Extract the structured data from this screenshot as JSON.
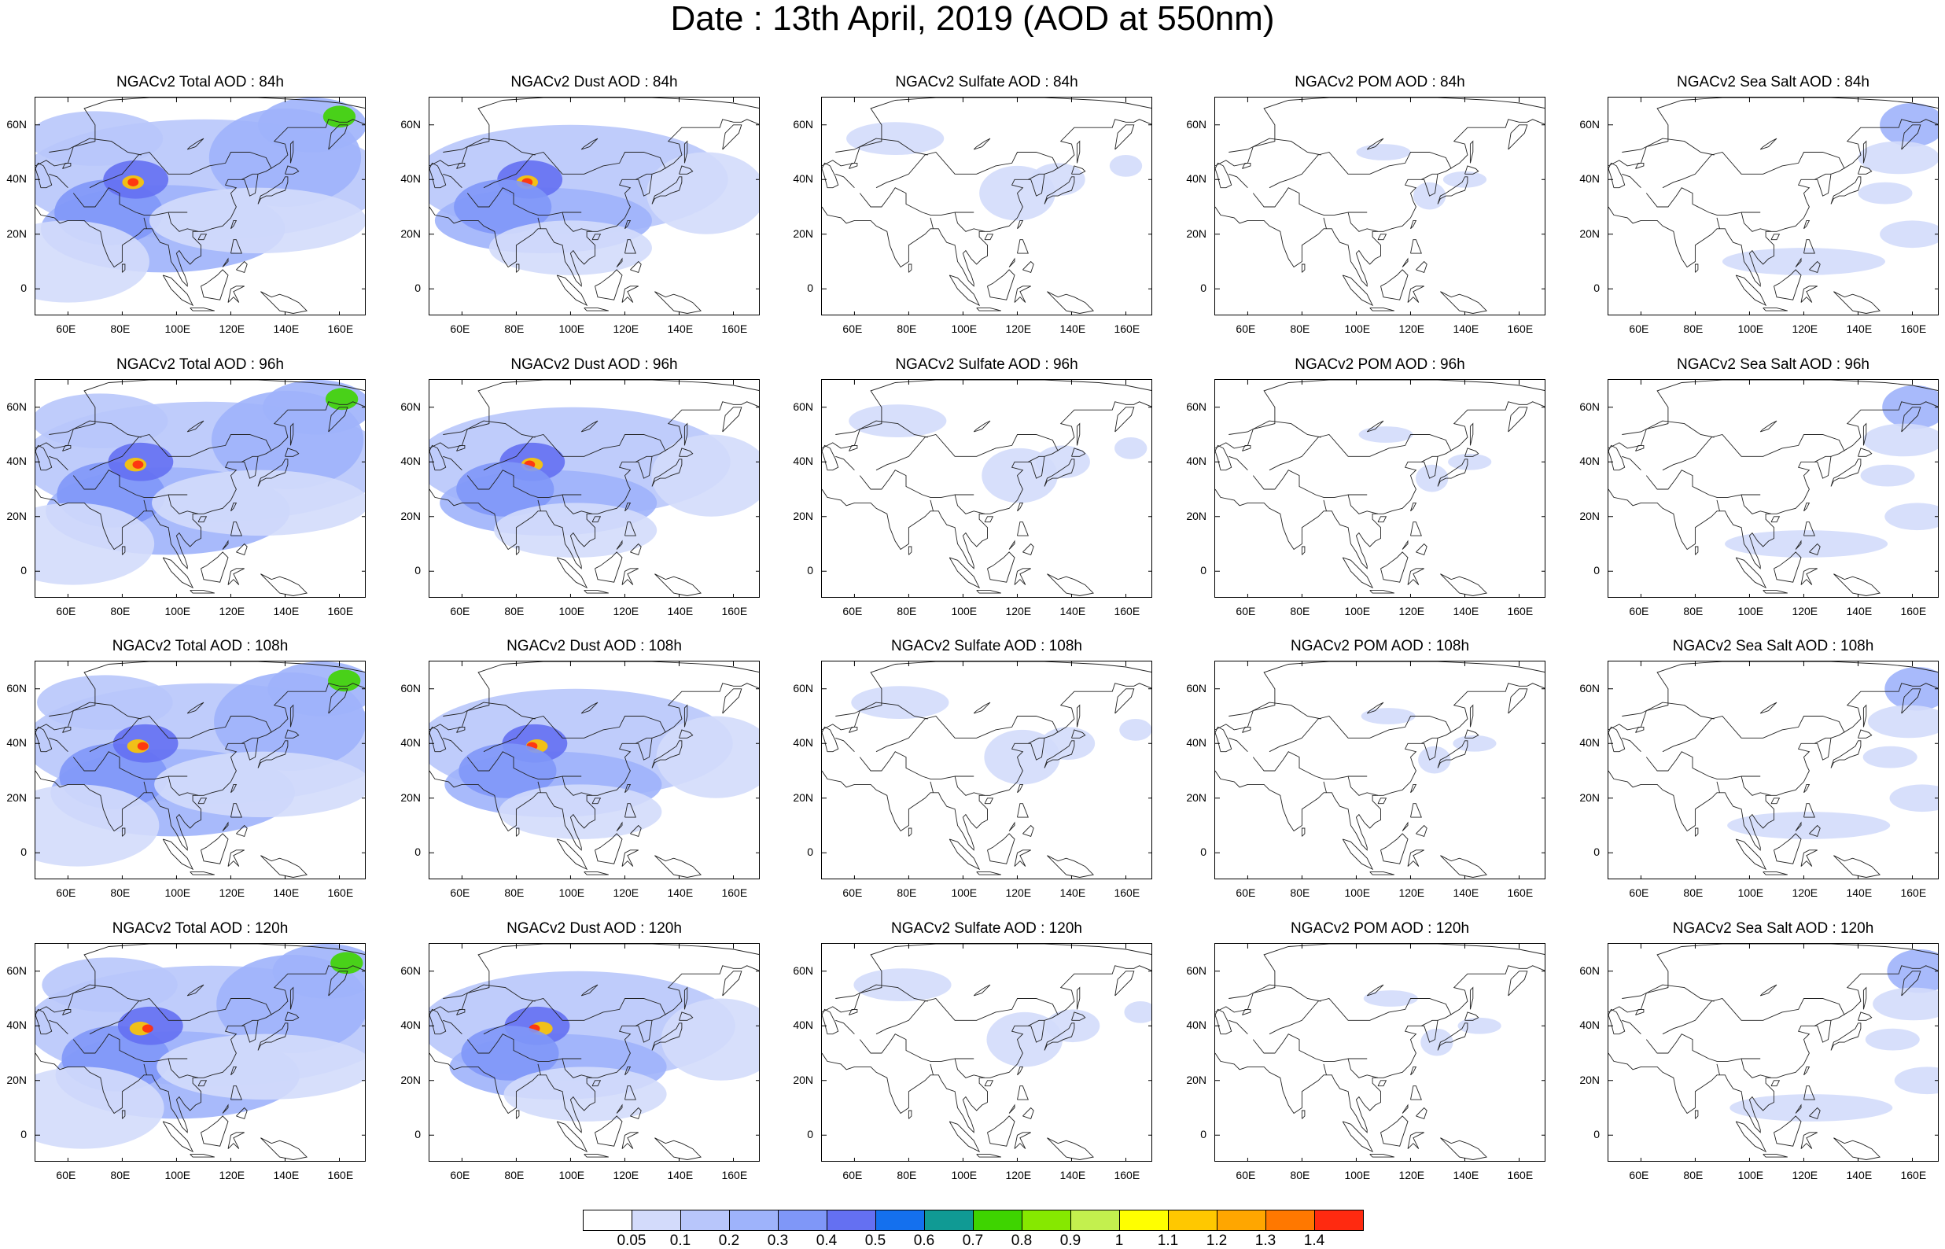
{
  "title": "Date : 13th April, 2019 (AOD at 550nm)",
  "lon_ticks": [
    "60E",
    "80E",
    "100E",
    "120E",
    "140E",
    "160E"
  ],
  "lat_ticks": [
    "60N",
    "40N",
    "20N",
    "0"
  ],
  "map_extent": {
    "lon": [
      48,
      170
    ],
    "lat": [
      -10,
      70
    ]
  },
  "rows": [
    {
      "hour": "84h",
      "titles": [
        "NGACv2 Total AOD : 84h",
        "NGACv2 Dust AOD : 84h",
        "NGACv2 Sulfate AOD : 84h",
        "NGACv2 POM AOD : 84h",
        "NGACv2 Sea Salt AOD : 84h"
      ]
    },
    {
      "hour": "96h",
      "titles": [
        "NGACv2 Total AOD : 96h",
        "NGACv2 Dust AOD : 96h",
        "NGACv2 Sulfate AOD : 96h",
        "NGACv2 POM AOD : 96h",
        "NGACv2 Sea Salt AOD : 96h"
      ]
    },
    {
      "hour": "108h",
      "titles": [
        "NGACv2 Total AOD : 108h",
        "NGACv2 Dust AOD : 108h",
        "NGACv2 Sulfate AOD : 108h",
        "NGACv2 POM AOD : 108h",
        "NGACv2 Sea Salt AOD : 108h"
      ]
    },
    {
      "hour": "120h",
      "titles": [
        "NGACv2 Total AOD : 120h",
        "NGACv2 Dust AOD : 120h",
        "NGACv2 Sulfate AOD : 120h",
        "NGACv2 POM AOD : 120h",
        "NGACv2 Sea Salt  AOD : 120h"
      ]
    }
  ],
  "colorbar": {
    "colors": [
      "#ffffff",
      "#d3dbfb",
      "#b8c6fb",
      "#9eb3fb",
      "#7f97f8",
      "#6470f2",
      "#1470ee",
      "#109a94",
      "#3ed400",
      "#86e800",
      "#c3f04e",
      "#ffff00",
      "#ffc800",
      "#ffa600",
      "#ff7800",
      "#ff2a10"
    ],
    "labels": [
      "0.05",
      "0.1",
      "0.2",
      "0.3",
      "0.4",
      "0.5",
      "0.6",
      "0.7",
      "0.8",
      "0.9",
      "1",
      "1.1",
      "1.2",
      "1.3",
      "1.4"
    ]
  },
  "species": [
    "total",
    "dust",
    "sulfate",
    "pom",
    "seasalt"
  ]
}
